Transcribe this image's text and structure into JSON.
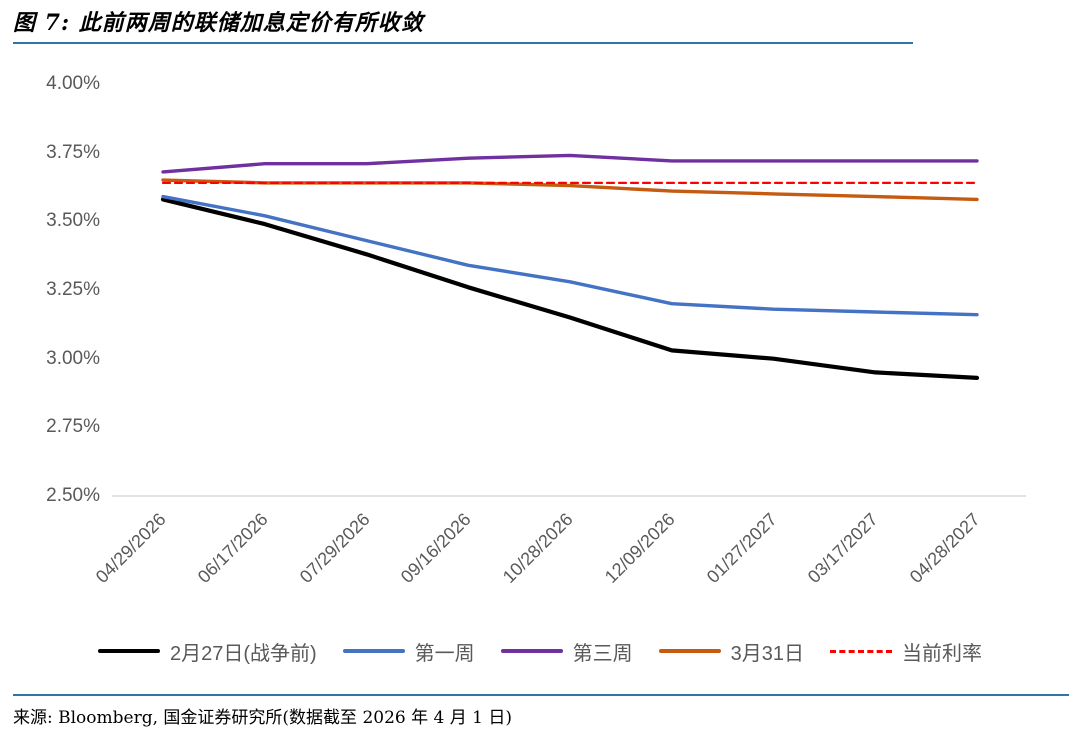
{
  "figure": {
    "title": "图 7: 此前两周的联储加息定价有所收敛",
    "source": "来源: Bloomberg, 国金证券研究所(数据截至 2026 年 4 月 1 日)"
  },
  "colors": {
    "accent_rule": "#2E75A8",
    "axis_text": "#595959",
    "axis_line": "#D9D9D9",
    "background": "#FFFFFF"
  },
  "chart_data": {
    "type": "line",
    "title": "此前两周的联储加息定价有所收敛",
    "xlabel": "",
    "ylabel": "",
    "unit": "%",
    "ylim": [
      2.5,
      4.0
    ],
    "grid": false,
    "legend_position": "bottom",
    "y_ticks": [
      "4.00%",
      "3.75%",
      "3.50%",
      "3.25%",
      "3.00%",
      "2.75%",
      "2.50%"
    ],
    "x": [
      "04/29/2026",
      "06/17/2026",
      "07/29/2026",
      "09/16/2026",
      "10/28/2026",
      "12/09/2026",
      "01/27/2027",
      "03/17/2027",
      "04/28/2027"
    ],
    "series": [
      {
        "name": "2月27日(战争前)",
        "color": "#000000",
        "line_style": "solid",
        "values": [
          3.58,
          3.49,
          3.38,
          3.26,
          3.15,
          3.03,
          3.0,
          2.95,
          2.93
        ]
      },
      {
        "name": "第一周",
        "color": "#4472C4",
        "line_style": "solid",
        "values": [
          3.59,
          3.52,
          3.43,
          3.34,
          3.28,
          3.2,
          3.18,
          3.17,
          3.16
        ]
      },
      {
        "name": "第三周",
        "color": "#7030A0",
        "line_style": "solid",
        "values": [
          3.68,
          3.71,
          3.71,
          3.73,
          3.74,
          3.72,
          3.72,
          3.72,
          3.72
        ]
      },
      {
        "name": "3月31日",
        "color": "#C55A11",
        "line_style": "solid",
        "values": [
          3.65,
          3.64,
          3.64,
          3.64,
          3.63,
          3.61,
          3.6,
          3.59,
          3.58
        ]
      },
      {
        "name": "当前利率",
        "color": "#FF0000",
        "line_style": "dashed",
        "values": [
          3.64,
          3.64,
          3.64,
          3.64,
          3.64,
          3.64,
          3.64,
          3.64,
          3.64
        ]
      }
    ]
  }
}
